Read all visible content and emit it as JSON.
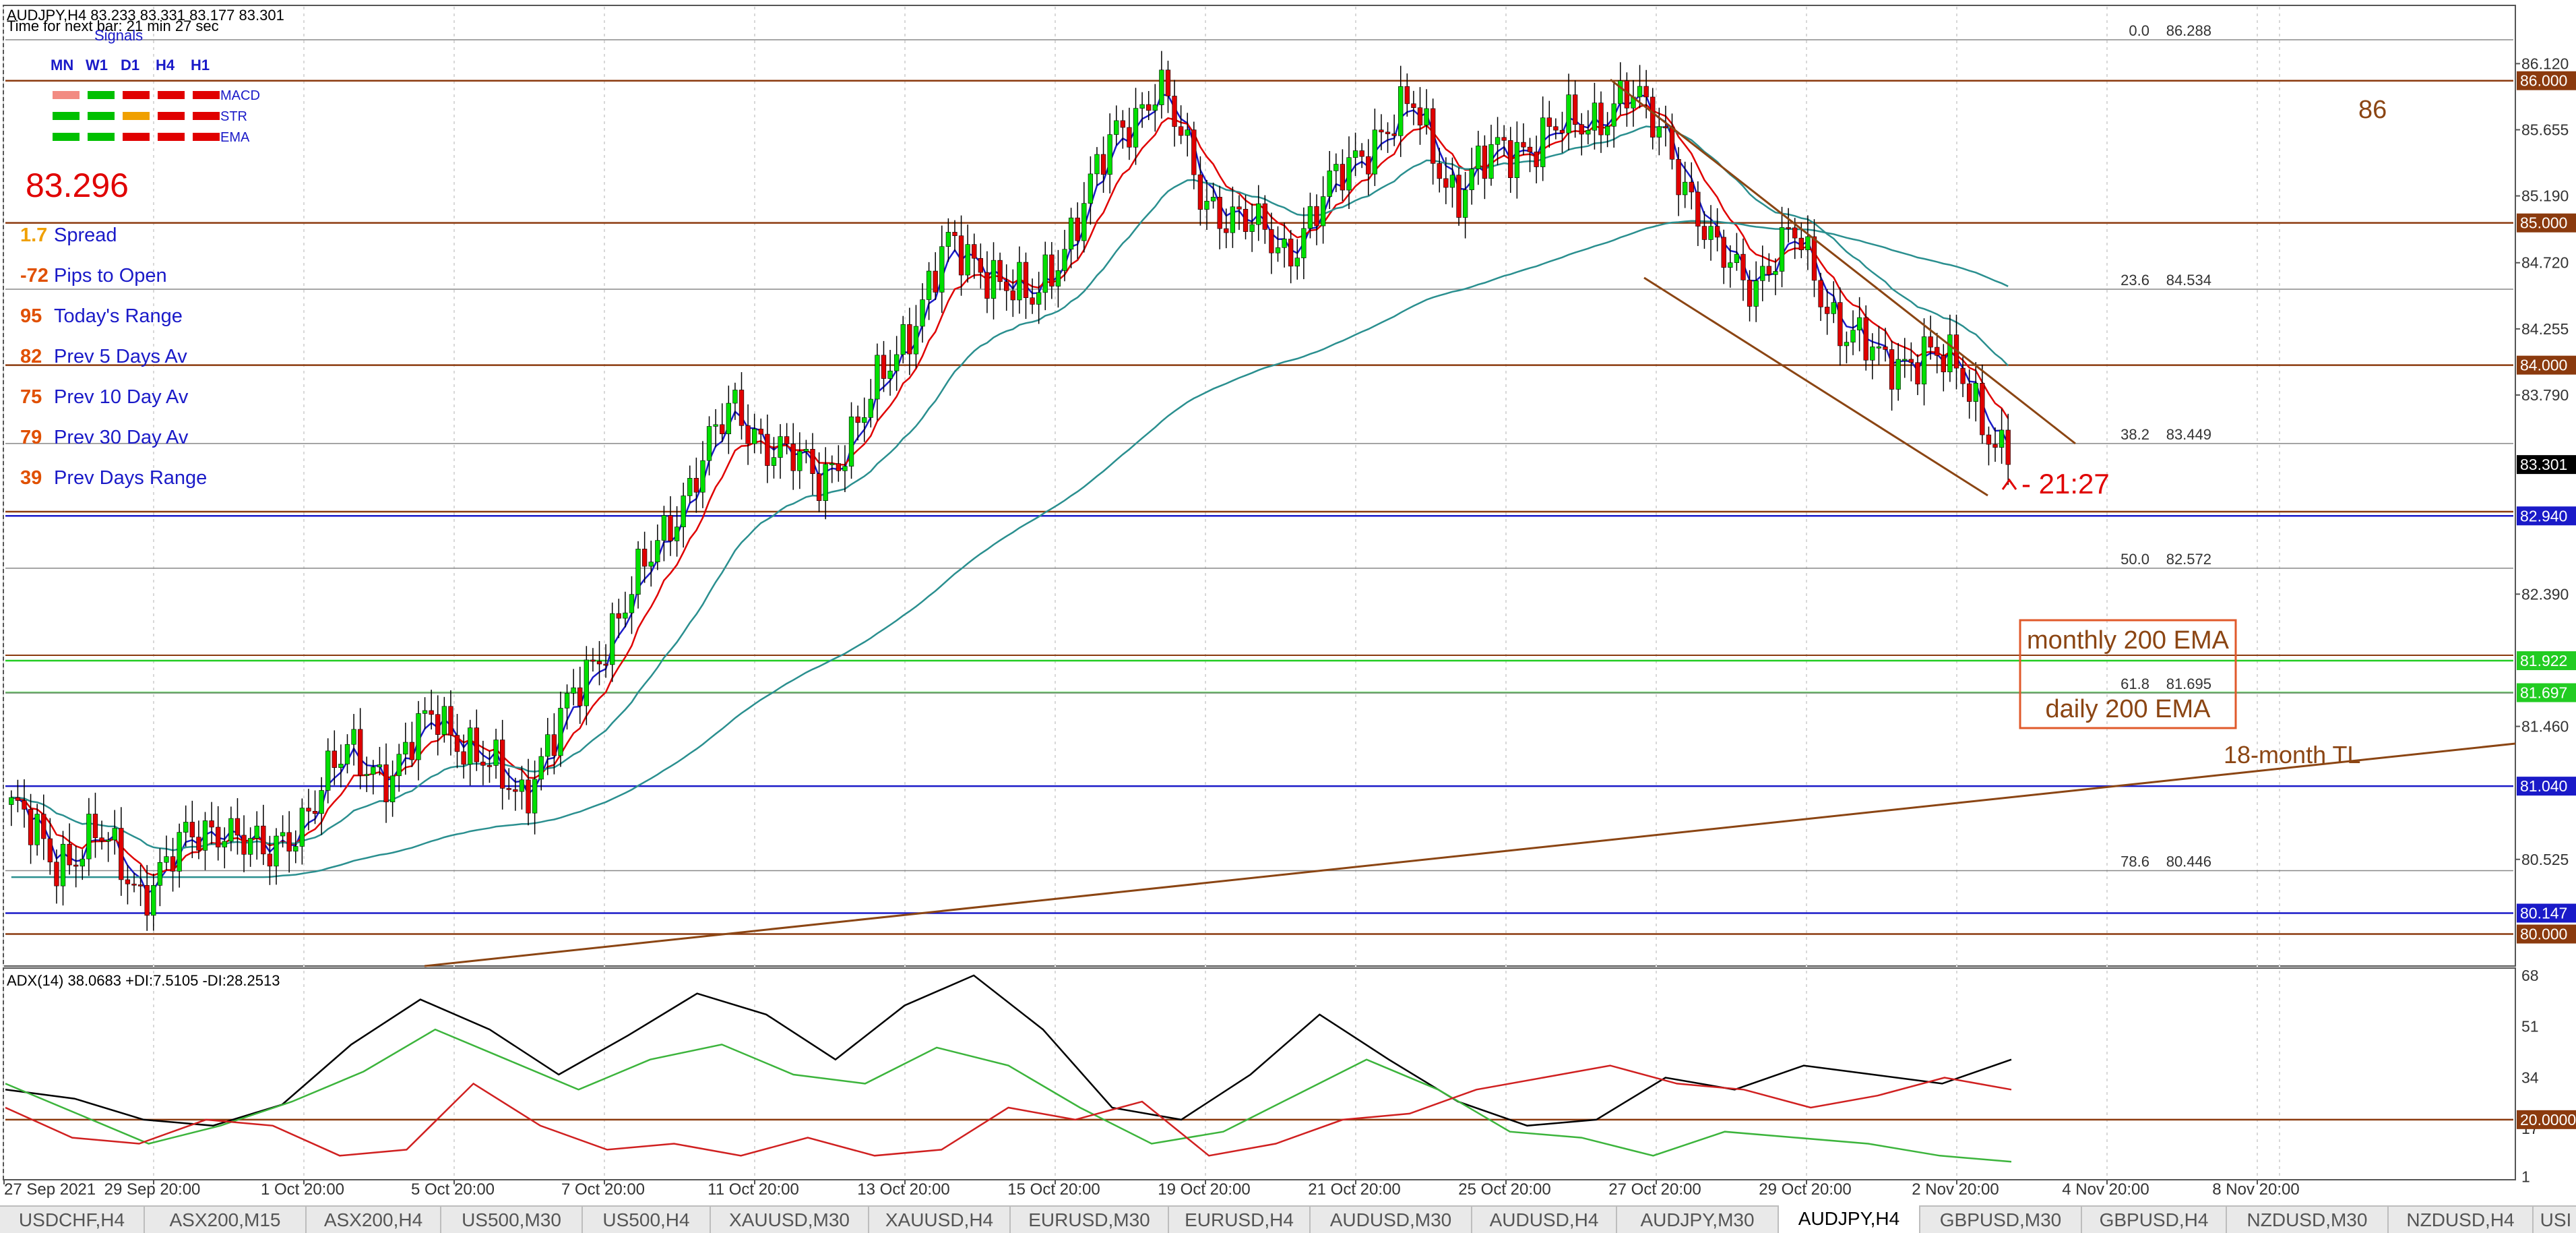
{
  "window": {
    "symbol_header": "AUDJPY,H4  83.233 83.331 83.177 83.301",
    "timer_text": "Time for next bar: 21 min 27 sec"
  },
  "signals": {
    "title": "Signals",
    "timeframes": [
      "MN",
      "W1",
      "D1",
      "H4",
      "H1"
    ],
    "rows": [
      {
        "label": "MACD",
        "colors": [
          "#f28b82",
          "#00c000",
          "#e00000",
          "#e00000",
          "#e00000"
        ]
      },
      {
        "label": "STR",
        "colors": [
          "#00c000",
          "#00c000",
          "#f0a000",
          "#e00000",
          "#e00000"
        ]
      },
      {
        "label": "EMA",
        "colors": [
          "#00c000",
          "#00c000",
          "#e00000",
          "#e00000",
          "#e00000"
        ]
      }
    ]
  },
  "price_display": "83.296",
  "stats": [
    {
      "value": "1.7",
      "label": "Spread",
      "value_color": "#f0a000"
    },
    {
      "value": "-72",
      "label": "Pips to Open",
      "value_color": "#e05000"
    },
    {
      "value": "95",
      "label": "Today's Range",
      "value_color": "#e05000"
    },
    {
      "value": "82",
      "label": "Prev 5 Days Av",
      "value_color": "#e05000"
    },
    {
      "value": "75",
      "label": "Prev 10 Day Av",
      "value_color": "#e05000"
    },
    {
      "value": "79",
      "label": "Prev 30 Day Av",
      "value_color": "#e05000"
    },
    {
      "value": "39",
      "label": "Prev Days Range",
      "value_color": "#e05000"
    }
  ],
  "fib_levels": [
    {
      "ratio": "0.0",
      "price": "86.288",
      "value": 86.288
    },
    {
      "ratio": "23.6",
      "price": "84.534",
      "value": 84.534
    },
    {
      "ratio": "38.2",
      "price": "83.449",
      "value": 83.449
    },
    {
      "ratio": "50.0",
      "price": "82.572",
      "value": 82.572
    },
    {
      "ratio": "61.8",
      "price": "81.695",
      "value": 81.695
    },
    {
      "ratio": "78.6",
      "price": "80.446",
      "value": 80.446
    }
  ],
  "price_axis": {
    "ticks": [
      "86.120",
      "85.655",
      "85.190",
      "84.720",
      "84.255",
      "83.790",
      "82.390",
      "81.460",
      "80.525"
    ],
    "ylim": [
      79.775,
      86.52
    ]
  },
  "price_tags": [
    {
      "text": "86.000",
      "value": 86.0,
      "bg": "#8b3a0e",
      "fg": "#ffffff"
    },
    {
      "text": "85.000",
      "value": 85.0,
      "bg": "#8b3a0e",
      "fg": "#ffffff"
    },
    {
      "text": "84.000",
      "value": 84.0,
      "bg": "#8b3a0e",
      "fg": "#ffffff"
    },
    {
      "text": "83.301",
      "value": 83.301,
      "bg": "#000000",
      "fg": "#ffffff"
    },
    {
      "text": "82.940",
      "value": 82.94,
      "bg": "#1a1ac8",
      "fg": "#ffffff"
    },
    {
      "text": "81.922",
      "value": 81.922,
      "bg": "#22cc22",
      "fg": "#ffffff"
    },
    {
      "text": "81.697",
      "value": 81.697,
      "bg": "#22cc22",
      "fg": "#ffffff"
    },
    {
      "text": "81.040",
      "value": 81.04,
      "bg": "#1a1ac8",
      "fg": "#ffffff"
    },
    {
      "text": "80.147",
      "value": 80.147,
      "bg": "#1a1ac8",
      "fg": "#ffffff"
    },
    {
      "text": "80.000",
      "value": 80.0,
      "bg": "#8b3a0e",
      "fg": "#ffffff"
    }
  ],
  "annotations": {
    "round_86": "86",
    "countdown": "- 21:27",
    "monthly_ema": "monthly 200 EMA",
    "daily_ema": "daily 200 EMA",
    "trendline": "18-month TL"
  },
  "adx": {
    "header": "ADX(14) 38.0683 +DI:7.5105 -DI:28.2513",
    "ticks": [
      "68",
      "51",
      "34",
      "17",
      "1"
    ],
    "level_tag": "20.0000",
    "ylim": [
      0,
      70
    ]
  },
  "time_axis": [
    "27 Sep 2021",
    "29 Sep 20:00",
    "1 Oct 20:00",
    "5 Oct 20:00",
    "7 Oct 20:00",
    "11 Oct 20:00",
    "13 Oct 20:00",
    "15 Oct 20:00",
    "19 Oct 20:00",
    "21 Oct 20:00",
    "25 Oct 20:00",
    "27 Oct 20:00",
    "29 Oct 20:00",
    "2 Nov 20:00",
    "4 Nov 20:00",
    "8 Nov 20:00"
  ],
  "chart_data": {
    "type": "candlestick",
    "symbol": "AUDJPY",
    "timeframe": "H4",
    "ohlc_last": {
      "open": 83.233,
      "high": 83.331,
      "low": 83.177,
      "close": 83.301
    },
    "close_path": [
      80.9,
      80.5,
      80.7,
      80.3,
      80.6,
      80.8,
      80.5,
      80.9,
      81.3,
      81.1,
      81.6,
      81.2,
      81.0,
      81.5,
      82.1,
      82.6,
      83.2,
      83.7,
      83.4,
      83.2,
      83.6,
      84.2,
      84.8,
      84.7,
      84.4,
      85.0,
      85.6,
      86.0,
      85.2,
      85.0,
      84.8,
      85.2,
      85.6,
      85.8,
      85.2,
      85.5,
      85.6,
      85.7,
      85.9,
      85.6,
      84.8,
      84.6,
      84.9,
      84.3,
      84.0,
      84.1,
      83.9,
      83.3
    ],
    "series": [
      {
        "name": "ADX",
        "values": [
          30,
          27,
          20,
          18,
          25,
          45,
          60,
          50,
          35,
          48,
          62,
          55,
          40,
          58,
          68,
          50,
          24,
          20,
          35,
          55,
          40,
          26,
          18,
          20,
          34,
          30,
          38,
          35,
          32,
          40
        ]
      },
      {
        "name": "+DI",
        "values": [
          32,
          22,
          12,
          18,
          26,
          36,
          50,
          40,
          30,
          40,
          45,
          35,
          32,
          44,
          38,
          24,
          12,
          16,
          28,
          40,
          30,
          16,
          14,
          8,
          16,
          14,
          12,
          8,
          6
        ]
      },
      {
        "name": "-DI",
        "values": [
          24,
          14,
          12,
          20,
          18,
          8,
          10,
          32,
          18,
          10,
          12,
          8,
          14,
          8,
          10,
          24,
          20,
          26,
          8,
          12,
          20,
          22,
          30,
          34,
          38,
          32,
          30,
          24,
          28,
          34,
          30
        ]
      }
    ]
  },
  "tabs": [
    {
      "label": "USDCHF,H4"
    },
    {
      "label": "ASX200,M15"
    },
    {
      "label": "ASX200,H4"
    },
    {
      "label": "US500,M30"
    },
    {
      "label": "US500,H4"
    },
    {
      "label": "XAUUSD,M30"
    },
    {
      "label": "XAUUSD,H4"
    },
    {
      "label": "EURUSD,M30"
    },
    {
      "label": "EURUSD,H4"
    },
    {
      "label": "AUDUSD,M30"
    },
    {
      "label": "AUDUSD,H4"
    },
    {
      "label": "AUDJPY,M30"
    },
    {
      "label": "AUDJPY,H4",
      "active": true
    },
    {
      "label": "GBPUSD,M30"
    },
    {
      "label": "GBPUSD,H4"
    },
    {
      "label": "NZDUSD,M30"
    },
    {
      "label": "NZDUSD,H4"
    },
    {
      "label": "USI"
    }
  ]
}
